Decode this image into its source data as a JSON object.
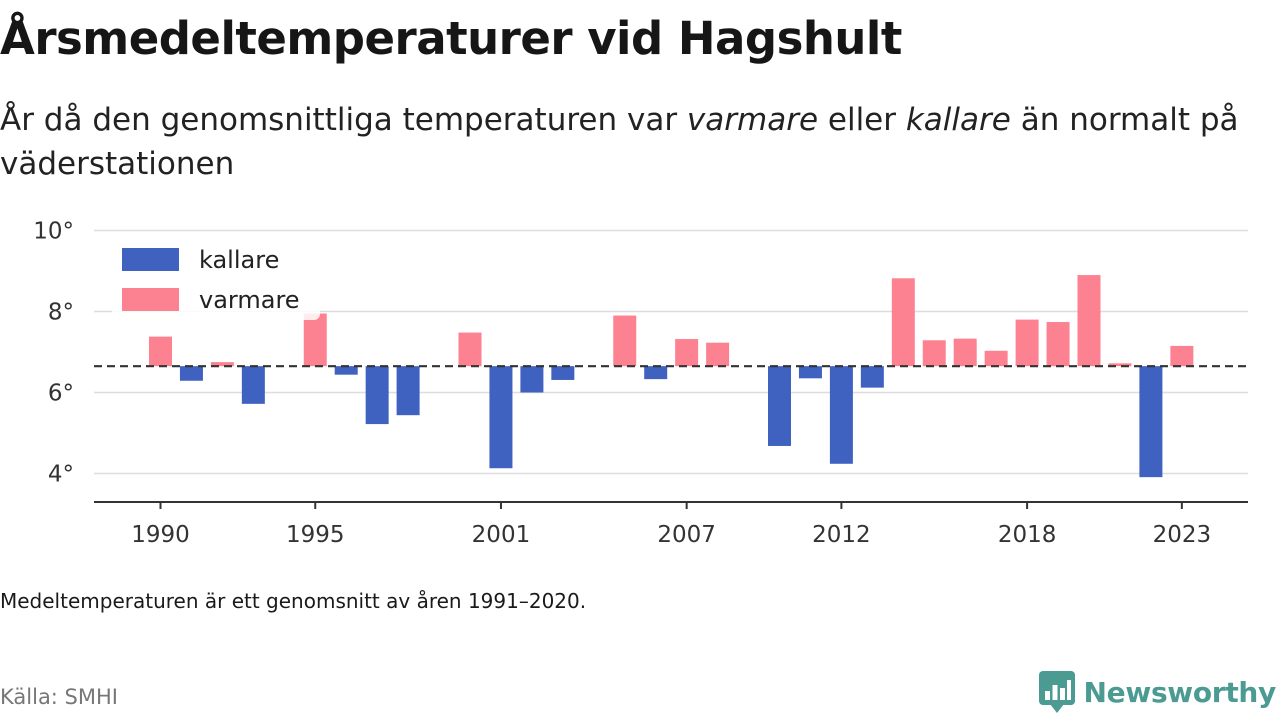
{
  "header": {
    "title": "Årsmedeltemperaturer vid Hagshult",
    "subtitle_pre": "År då den genomsnittliga temperaturen var ",
    "subtitle_warm": "varmare",
    "subtitle_mid": " eller ",
    "subtitle_cold": "kallare",
    "subtitle_post": " än normalt på väderstationen"
  },
  "footer": {
    "note": "Medeltemperaturen är ett genomsnitt av åren 1991–2020.",
    "source": "Källa: SMHI",
    "brand": "Newsworthy"
  },
  "colors": {
    "kallare": "#3f62c1",
    "varmare": "#fd8291",
    "baseline": "#333333",
    "grid": "#dddddd",
    "brand": "#4b9b92"
  },
  "chart_data": {
    "type": "bar",
    "baseline": 6.65,
    "ylim": [
      3.3,
      10.3
    ],
    "yticks": [
      4,
      6,
      8,
      10
    ],
    "ytick_labels": [
      "4°",
      "6°",
      "8°",
      "10°"
    ],
    "xticks": [
      1990,
      1995,
      2001,
      2007,
      2012,
      2018,
      2023
    ],
    "legend": {
      "position": "top-left",
      "entries": [
        "kallare",
        "varmare"
      ]
    },
    "grid": true,
    "categories": [
      1990,
      1991,
      1992,
      1993,
      1994,
      1995,
      1996,
      1997,
      1998,
      1999,
      2000,
      2001,
      2002,
      2003,
      2004,
      2005,
      2006,
      2007,
      2008,
      2009,
      2010,
      2011,
      2012,
      2013,
      2014,
      2015,
      2016,
      2017,
      2018,
      2019,
      2020,
      2021,
      2022,
      2023
    ],
    "values": [
      7.38,
      6.29,
      6.75,
      5.72,
      null,
      7.95,
      6.44,
      5.22,
      5.44,
      null,
      7.48,
      4.13,
      6.0,
      6.31,
      null,
      7.9,
      6.33,
      7.32,
      7.23,
      null,
      4.68,
      6.35,
      4.24,
      6.12,
      8.82,
      7.29,
      7.33,
      7.03,
      7.8,
      7.74,
      8.9,
      6.72,
      3.91,
      7.15
    ]
  }
}
